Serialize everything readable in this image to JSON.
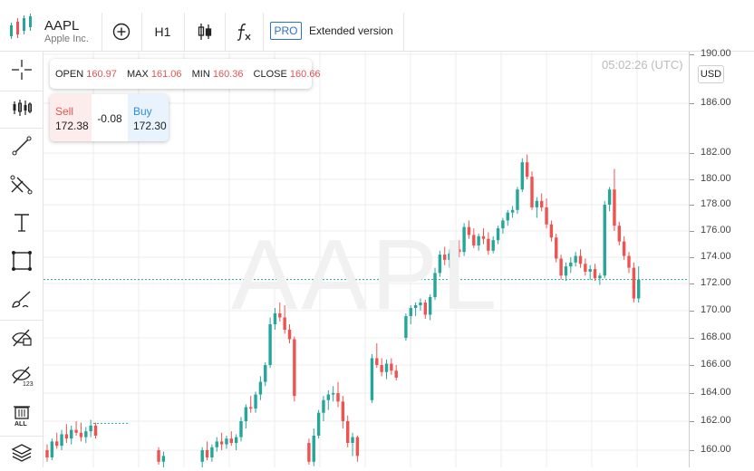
{
  "header": {
    "symbol": "AAPL",
    "company": "Apple Inc.",
    "timeframe": "H1",
    "pro_badge": "PRO",
    "extended_label": "Extended version"
  },
  "left_toolbar": [
    {
      "icon": "crosshair-icon"
    },
    {
      "icon": "candles-icon"
    },
    {
      "icon": "trend-line-icon"
    },
    {
      "icon": "fibonacci-icon"
    },
    {
      "icon": "text-icon"
    },
    {
      "icon": "rectangle-icon"
    },
    {
      "icon": "brush-icon"
    },
    {
      "icon": "hide-drawings-icon"
    },
    {
      "icon": "hide-indicators-icon"
    },
    {
      "icon": "delete-all-icon"
    },
    {
      "icon": "layers-icon"
    }
  ],
  "ohlc": {
    "open_label": "OPEN",
    "open": "160.97",
    "max_label": "MAX",
    "max": "161.06",
    "min_label": "MIN",
    "min": "160.36",
    "close_label": "CLOSE",
    "close": "160.66"
  },
  "trade": {
    "sell_label": "Sell",
    "sell_price": "172.38",
    "spread": "-0.08",
    "buy_label": "Buy",
    "buy_price": "172.30"
  },
  "time_label": "05:02:26 (UTC)",
  "currency": "USD",
  "watermark": "AAPL",
  "colors": {
    "up": "#26a69a",
    "down": "#ef5350",
    "price_line": "#26a69a"
  },
  "chart_data": {
    "type": "candlestick",
    "current_price": 172.3,
    "y_ticks": [
      "190.00",
      "186.00",
      "182.00",
      "180.00",
      "178.00",
      "176.00",
      "174.00",
      "172.00",
      "170.00",
      "168.00",
      "166.00",
      "164.00",
      "162.00",
      "160.00"
    ],
    "candles": [
      [
        160,
        160.4,
        159.2,
        159.5
      ],
      [
        159.5,
        160.8,
        159.3,
        160.6
      ],
      [
        160.6,
        161.2,
        160.1,
        160.3
      ],
      [
        160.3,
        161.4,
        160.0,
        161.1
      ],
      [
        161.1,
        161.8,
        160.5,
        160.8
      ],
      [
        160.8,
        161.7,
        160.4,
        161.4
      ],
      [
        161.4,
        162.0,
        161.0,
        161.2
      ],
      [
        161.2,
        161.9,
        160.6,
        160.9
      ],
      [
        160.9,
        161.6,
        160.5,
        161.3
      ],
      [
        161.3,
        162.1,
        160.9,
        161.7
      ],
      [
        161.7,
        161.9,
        160.8,
        161.0
      ],
      [
        null
      ],
      [
        null
      ],
      [
        null
      ],
      [
        null
      ],
      [
        null
      ],
      [
        null
      ],
      [
        null
      ],
      [
        null
      ],
      [
        null
      ],
      [
        null
      ],
      [
        null
      ],
      [
        null
      ],
      [
        160.0,
        160.2,
        159.0,
        159.2
      ],
      [
        159.2,
        159.9,
        158.8,
        159.6
      ],
      [
        null
      ],
      [
        null
      ],
      [
        null
      ],
      [
        null
      ],
      [
        null
      ],
      [
        null
      ],
      [
        null
      ],
      [
        159.2,
        160.2,
        158.8,
        160.0
      ],
      [
        160.0,
        160.6,
        159.3,
        159.5
      ],
      [
        159.5,
        160.4,
        159.2,
        160.2
      ],
      [
        160.2,
        160.9,
        159.9,
        160.6
      ],
      [
        160.6,
        161.2,
        160.0,
        160.4
      ],
      [
        160.4,
        161.0,
        160.1,
        160.8
      ],
      [
        160.8,
        161.3,
        160.3,
        160.5
      ],
      [
        160.5,
        161.1,
        160.0,
        160.9
      ],
      [
        160.9,
        162.3,
        160.6,
        162.0
      ],
      [
        162.0,
        163.2,
        161.5,
        163.0
      ],
      [
        163.0,
        163.8,
        162.6,
        162.9
      ],
      [
        162.9,
        164.1,
        162.6,
        163.9
      ],
      [
        163.9,
        165.2,
        163.5,
        164.8
      ],
      [
        164.8,
        166.2,
        164.5,
        166.0
      ],
      [
        166.0,
        169.5,
        165.8,
        169.0
      ],
      [
        169.0,
        170.2,
        168.6,
        169.8
      ],
      [
        169.8,
        170.6,
        169.2,
        169.5
      ],
      [
        169.5,
        170.4,
        168.3,
        168.6
      ],
      [
        168.6,
        169.0,
        167.6,
        167.9
      ],
      [
        167.9,
        168.1,
        163.4,
        163.8
      ],
      [
        null
      ],
      [
        null
      ],
      [
        160.5,
        160.8,
        159.0,
        159.2
      ],
      [
        159.2,
        161.5,
        158.9,
        161.0
      ],
      [
        161.0,
        162.8,
        160.8,
        162.6
      ],
      [
        162.6,
        163.8,
        162.0,
        163.5
      ],
      [
        163.5,
        164.2,
        162.8,
        163.9
      ],
      [
        163.9,
        164.5,
        163.4,
        164.0
      ],
      [
        164.0,
        164.8,
        163.0,
        163.4
      ],
      [
        163.4,
        163.8,
        161.5,
        162.0
      ],
      [
        162.0,
        162.4,
        160.2,
        160.5
      ],
      [
        160.5,
        161.2,
        159.6,
        160.9
      ],
      [
        160.9,
        161.0,
        159.2,
        159.6
      ],
      [
        null
      ],
      [
        null
      ],
      [
        163.5,
        166.8,
        163.3,
        166.5
      ],
      [
        166.5,
        167.6,
        165.8,
        166.0
      ],
      [
        166.0,
        166.5,
        165.2,
        165.5
      ],
      [
        165.5,
        166.4,
        165.0,
        166.1
      ],
      [
        166.1,
        166.5,
        165.3,
        165.6
      ],
      [
        165.6,
        166.0,
        164.9,
        165.1
      ],
      [
        null
      ],
      [
        168.0,
        169.8,
        167.8,
        169.6
      ],
      [
        169.6,
        170.4,
        169.0,
        170.2
      ],
      [
        170.2,
        170.6,
        169.6,
        170.4
      ],
      [
        170.4,
        170.9,
        170.0,
        170.6
      ],
      [
        170.6,
        170.8,
        169.4,
        169.7
      ],
      [
        169.7,
        171.2,
        169.3,
        171.0
      ],
      [
        171.0,
        173.2,
        170.8,
        172.8
      ],
      [
        172.8,
        174.5,
        172.5,
        174.2
      ],
      [
        174.2,
        174.8,
        173.4,
        173.8
      ],
      [
        173.8,
        174.6,
        173.2,
        174.3
      ],
      [
        174.3,
        175.0,
        173.9,
        174.6
      ],
      [
        174.6,
        175.3,
        174.0,
        174.4
      ],
      [
        174.4,
        176.6,
        174.1,
        176.3
      ],
      [
        176.3,
        176.8,
        175.4,
        175.7
      ],
      [
        175.7,
        176.2,
        174.7,
        174.9
      ],
      [
        174.9,
        175.8,
        174.5,
        175.6
      ],
      [
        175.6,
        176.2,
        175.0,
        175.4
      ],
      [
        175.4,
        175.9,
        174.2,
        174.5
      ],
      [
        174.5,
        175.6,
        174.3,
        175.3
      ],
      [
        175.3,
        176.4,
        175.0,
        176.2
      ],
      [
        176.2,
        177.0,
        175.8,
        176.8
      ],
      [
        176.8,
        177.6,
        176.4,
        177.4
      ],
      [
        177.4,
        177.9,
        177.0,
        177.6
      ],
      [
        177.6,
        179.4,
        177.3,
        179.2
      ],
      [
        179.2,
        181.6,
        179.0,
        181.3
      ],
      [
        181.3,
        181.9,
        180.0,
        180.2
      ],
      [
        180.2,
        180.6,
        177.6,
        177.8
      ],
      [
        177.8,
        178.6,
        177.0,
        178.3
      ],
      [
        178.3,
        178.9,
        177.5,
        177.8
      ],
      [
        177.8,
        178.5,
        176.2,
        176.5
      ],
      [
        176.5,
        176.8,
        175.2,
        175.5
      ],
      [
        175.5,
        175.8,
        173.6,
        173.9
      ],
      [
        173.9,
        174.2,
        172.3,
        172.6
      ],
      [
        172.6,
        173.6,
        172.2,
        173.3
      ],
      [
        173.3,
        174.0,
        172.8,
        173.6
      ],
      [
        173.6,
        174.4,
        173.3,
        174.1
      ],
      [
        174.1,
        174.6,
        173.2,
        173.5
      ],
      [
        173.5,
        173.9,
        172.6,
        172.9
      ],
      [
        172.9,
        173.4,
        172.3,
        173.1
      ],
      [
        173.1,
        173.5,
        172.2,
        172.4
      ],
      [
        172.4,
        172.8,
        171.9,
        172.6
      ],
      [
        172.6,
        178.3,
        172.4,
        178.0
      ],
      [
        178.0,
        179.4,
        177.5,
        179.2
      ],
      [
        179.2,
        180.8,
        176.0,
        176.4
      ],
      [
        176.4,
        176.7,
        174.9,
        175.2
      ],
      [
        175.2,
        175.6,
        173.8,
        174.1
      ],
      [
        174.1,
        174.4,
        172.8,
        173.2
      ],
      [
        173.2,
        173.6,
        170.6,
        170.9
      ],
      [
        170.9,
        173.3,
        170.6,
        172.3
      ]
    ]
  }
}
